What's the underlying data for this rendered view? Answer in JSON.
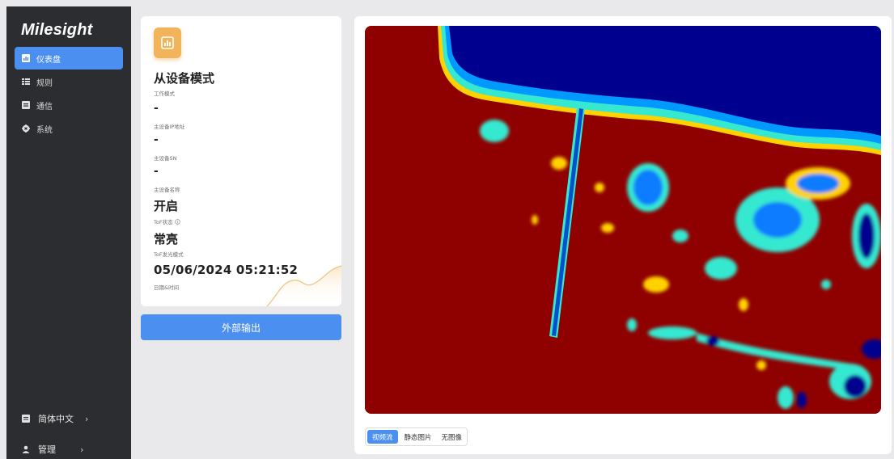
{
  "sidebar": {
    "logo": "Milesight",
    "items": [
      {
        "label": "仪表盘",
        "icon": "bar-chart-icon",
        "active": true
      },
      {
        "label": "规则",
        "icon": "list-icon",
        "active": false
      },
      {
        "label": "通信",
        "icon": "network-icon",
        "active": false
      },
      {
        "label": "系统",
        "icon": "gear-icon",
        "active": false
      }
    ],
    "language": {
      "label": "简体中文",
      "chevron": "›"
    },
    "admin": {
      "label": "管理",
      "chevron": "›"
    }
  },
  "info_card": {
    "mode_value": "从设备模式",
    "mode_label": "工作模式",
    "master_ip_value": "-",
    "master_ip_label": "主设备IP地址",
    "master_sn_value": "-",
    "master_sn_label": "主设备SN",
    "master_name_value": "-",
    "master_name_label": "主设备名称",
    "tof_status_value": "开启",
    "tof_status_label": "ToF状态",
    "tof_light_value": "常亮",
    "tof_light_label": "ToF发光模式",
    "datetime_value": "05/06/2024 05:21:52",
    "datetime_label": "日期&时间"
  },
  "actions": {
    "external_output": "外部输出"
  },
  "video": {
    "tabs": [
      {
        "label": "视频流",
        "active": true
      },
      {
        "label": "静态图片",
        "active": false
      },
      {
        "label": "无图像",
        "active": false
      }
    ]
  },
  "colors": {
    "accent": "#4b8ff0",
    "sidebar_bg": "#2c2d30",
    "card_icon": "#f2b45a",
    "heatmap_red": "#8f0000",
    "heatmap_blue": "#00008f"
  }
}
